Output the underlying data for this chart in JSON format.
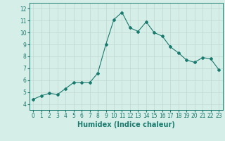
{
  "x": [
    0,
    1,
    2,
    3,
    4,
    5,
    6,
    7,
    8,
    9,
    10,
    11,
    12,
    13,
    14,
    15,
    16,
    17,
    18,
    19,
    20,
    21,
    22,
    23
  ],
  "y": [
    4.4,
    4.7,
    4.9,
    4.8,
    5.3,
    5.8,
    5.8,
    5.8,
    6.6,
    9.0,
    11.1,
    11.7,
    10.4,
    10.1,
    10.9,
    10.0,
    9.7,
    8.8,
    8.3,
    7.7,
    7.5,
    7.9,
    7.8,
    6.9
  ],
  "xlim": [
    -0.5,
    23.5
  ],
  "ylim": [
    3.5,
    12.5
  ],
  "yticks": [
    4,
    5,
    6,
    7,
    8,
    9,
    10,
    11,
    12
  ],
  "xticks": [
    0,
    1,
    2,
    3,
    4,
    5,
    6,
    7,
    8,
    9,
    10,
    11,
    12,
    13,
    14,
    15,
    16,
    17,
    18,
    19,
    20,
    21,
    22,
    23
  ],
  "xlabel": "Humidex (Indice chaleur)",
  "line_color": "#1a7a6e",
  "marker": "D",
  "marker_size": 2.0,
  "background_color": "#d6eee8",
  "grid_color": "#c0d8d0",
  "tick_label_fontsize": 5.5,
  "xlabel_fontsize": 7,
  "title": ""
}
